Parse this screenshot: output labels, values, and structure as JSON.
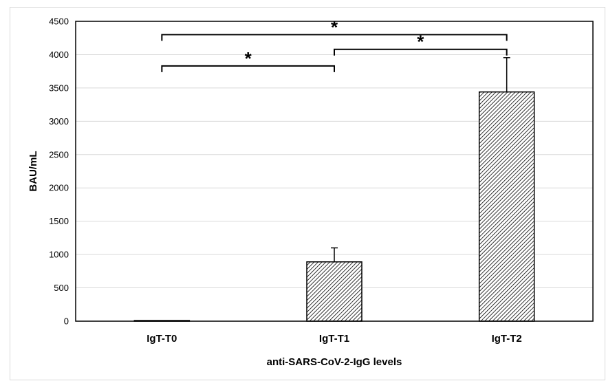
{
  "chart_data": {
    "type": "bar",
    "title": "",
    "xlabel": "anti-SARS-CoV-2-IgG levels",
    "ylabel": "BAU/mL",
    "ylim": [
      0,
      4500
    ],
    "yticks": [
      0,
      500,
      1000,
      1500,
      2000,
      2500,
      3000,
      3500,
      4000,
      4500
    ],
    "categories": [
      "IgT-T0",
      "IgT-T1",
      "IgT-T2"
    ],
    "values": [
      10,
      890,
      3440
    ],
    "error_upper": [
      5,
      210,
      515
    ],
    "grid": true,
    "bar_fill": "diagonal-hatch",
    "colors": {
      "bar_stroke": "#000000",
      "hatch": "#000000",
      "grid": "#d9d9d9"
    },
    "significance": [
      {
        "from": "IgT-T0",
        "to": "IgT-T2",
        "y": 4300,
        "label": "*"
      },
      {
        "from": "IgT-T1",
        "to": "IgT-T2",
        "y": 4080,
        "label": "*"
      },
      {
        "from": "IgT-T0",
        "to": "IgT-T1",
        "y": 3830,
        "label": "*"
      }
    ]
  }
}
